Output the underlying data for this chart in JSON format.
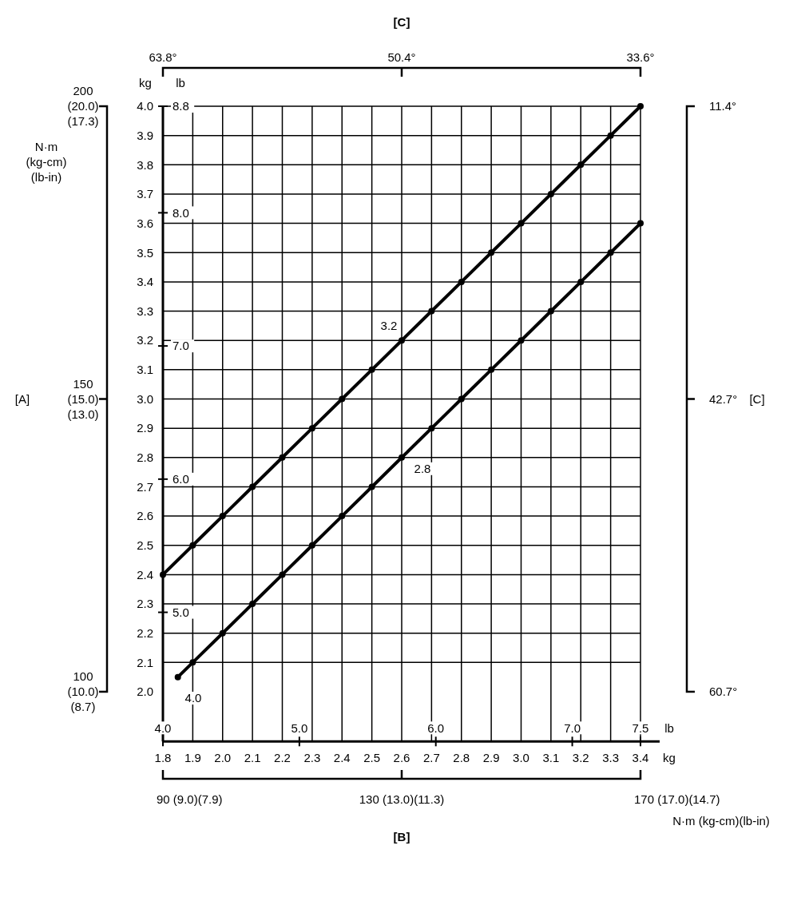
{
  "chart_data": {
    "type": "line",
    "xlabel": "kg",
    "ylabel": "kg",
    "x2label": "lb",
    "y3label": "lb",
    "xlim": [
      1.8,
      3.4
    ],
    "xticks": [
      1.8,
      1.9,
      {
        "value": 2,
        "label": "2.0"
      },
      2.1,
      2.2,
      2.3,
      2.4,
      2.5,
      2.6,
      2.7,
      2.8,
      2.9,
      {
        "value": 3,
        "label": "3.0"
      },
      3.1,
      3.2,
      3.3,
      3.4
    ],
    "ylim": [
      1.83,
      4.0
    ],
    "yticks": [
      {
        "value": 2,
        "label": "2.0"
      },
      2.1,
      2.2,
      2.3,
      2.4,
      2.5,
      2.6,
      2.7,
      2.8,
      2.9,
      {
        "value": 3,
        "label": "3.0"
      },
      3.1,
      3.2,
      3.3,
      3.4,
      3.5,
      3.6,
      3.7,
      3.8,
      3.9,
      {
        "value": 4,
        "label": "4.0"
      }
    ],
    "x2lim": [
      4.0,
      7.5
    ],
    "x2ticks": [
      {
        "value": 4,
        "label": "4.0"
      },
      {
        "value": 5,
        "label": "5.0"
      },
      {
        "value": 6,
        "label": "6.0"
      },
      {
        "value": 7,
        "label": "7.0"
      },
      7.5
    ],
    "y3lim": [
      4.03,
      8.8
    ],
    "y3ticks": [
      {
        "value": 5,
        "label": "5.0"
      },
      {
        "value": 6,
        "label": "6.0"
      },
      {
        "value": 7,
        "label": "7.0"
      },
      {
        "value": 8,
        "label": "8.0"
      },
      8.8
    ],
    "grid": true,
    "marker": "circle",
    "line_style": "solid",
    "series": [
      {
        "color": "#000000",
        "x": [
          1.8,
          1.9,
          2.0,
          2.1,
          2.2,
          2.3,
          2.4,
          2.5,
          2.6,
          2.7,
          2.8,
          2.9,
          3.0,
          3.1,
          3.2,
          3.3,
          3.4
        ],
        "values": [
          2.4,
          2.5,
          2.6,
          2.7,
          2.8,
          2.9,
          3.0,
          3.1,
          3.2,
          3.3,
          3.4,
          3.5,
          3.6,
          3.7,
          3.8,
          3.9,
          4.0
        ]
      },
      {
        "color": "#000000",
        "x": [
          1.85,
          1.9,
          2.0,
          2.1,
          2.2,
          2.3,
          2.4,
          2.5,
          2.6,
          2.7,
          2.8,
          2.9,
          3.0,
          3.1,
          3.2,
          3.3,
          3.4
        ],
        "values": [
          2.05,
          2.1,
          2.2,
          2.3,
          2.4,
          2.5,
          2.6,
          2.7,
          2.8,
          2.9,
          3.0,
          3.1,
          3.2,
          3.3,
          3.4,
          3.5,
          3.6
        ]
      }
    ],
    "annotations": [
      "[C]",
      "63.8°",
      "50.4°",
      "33.6°",
      "[C]",
      "11.4°",
      "42.7°",
      "60.7°",
      "[A]",
      "200 (20.0) (17.3)",
      "150 (15.0) (13.0)",
      "100 (10.0) (8.7)",
      "N·m (kg-cm) (lb-in)",
      "[B]",
      "90 (9.0)(7.9)",
      "130 (13.0)(11.3)",
      "170 (17.0)(14.7)",
      "N·m (kg-cm)(lb-in)",
      "4.0",
      {
        "text": "3.2",
        "x": 2.6,
        "y": 3.2
      },
      {
        "text": "2.8",
        "x": 2.6,
        "y": 2.8
      }
    ]
  }
}
